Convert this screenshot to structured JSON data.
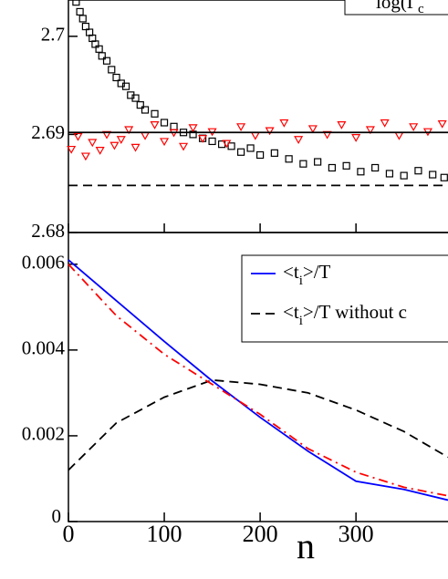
{
  "chart_data": [
    {
      "type": "scatter",
      "xlim": [
        0,
        396
      ],
      "xticks": [
        0,
        100,
        200,
        300
      ],
      "ylim": [
        2.68,
        2.7037
      ],
      "yticks": [
        2.68,
        2.69,
        2.7
      ],
      "legend": [
        {
          "parts": [
            "log(Γ",
            "c"
          ]
        }
      ],
      "series": [
        {
          "marker": "square",
          "color": "#000000",
          "x": [
            8,
            12,
            15,
            18,
            22,
            25,
            28,
            32,
            35,
            40,
            45,
            50,
            55,
            60,
            65,
            70,
            75,
            80,
            90,
            100,
            110,
            120,
            130,
            140,
            150,
            160,
            170,
            180,
            190,
            200,
            215,
            230,
            245,
            260,
            275,
            290,
            305,
            320,
            335,
            350,
            365,
            380,
            392
          ],
          "values": [
            2.7035,
            2.7025,
            2.7018,
            2.701,
            2.7004,
            2.6998,
            2.6992,
            2.6987,
            2.698,
            2.6975,
            2.6966,
            2.6958,
            2.6952,
            2.6949,
            2.694,
            2.6937,
            2.693,
            2.6925,
            2.6921,
            2.6912,
            2.6908,
            2.6902,
            2.69,
            2.6896,
            2.6893,
            2.689,
            2.6888,
            2.6882,
            2.6886,
            2.6879,
            2.6881,
            2.6875,
            2.687,
            2.6872,
            2.6866,
            2.6868,
            2.6862,
            2.6866,
            2.686,
            2.6858,
            2.6863,
            2.6859,
            2.6856
          ]
        },
        {
          "marker": "triangle",
          "color": "#ff0000",
          "x": [
            3,
            10,
            18,
            25,
            33,
            40,
            48,
            55,
            63,
            70,
            80,
            90,
            100,
            110,
            120,
            130,
            140,
            150,
            165,
            180,
            195,
            210,
            225,
            240,
            255,
            270,
            285,
            300,
            315,
            330,
            345,
            360,
            375,
            390
          ],
          "values": [
            2.6885,
            2.6898,
            2.6878,
            2.6892,
            2.6884,
            2.69,
            2.6889,
            2.6895,
            2.6905,
            2.6887,
            2.6899,
            2.691,
            2.6893,
            2.6902,
            2.6888,
            2.6907,
            2.6896,
            2.6903,
            2.6891,
            2.6908,
            2.6899,
            2.6904,
            2.6912,
            2.6895,
            2.6906,
            2.69,
            2.691,
            2.6897,
            2.6905,
            2.6912,
            2.6899,
            2.6908,
            2.6903,
            2.6911
          ]
        },
        {
          "line": "solid",
          "color": "#000000",
          "x": [
            0,
            396
          ],
          "values": [
            2.6902,
            2.6902
          ]
        },
        {
          "line": "dashed",
          "color": "#000000",
          "x": [
            0,
            396
          ],
          "values": [
            2.6848,
            2.6848
          ]
        }
      ]
    },
    {
      "type": "line",
      "xlim": [
        0,
        396
      ],
      "xticks": [
        0,
        100,
        200,
        300
      ],
      "ylim": [
        0,
        0.00674
      ],
      "yticks": [
        0,
        0.002,
        0.004,
        0.006
      ],
      "xlabel": "n",
      "x": [
        0,
        50,
        100,
        150,
        200,
        250,
        300,
        350,
        396
      ],
      "legend": [
        {
          "parts": [
            "<t",
            "i",
            ">/T"
          ]
        },
        {
          "parts": [
            "<t",
            "i",
            ">/T without c"
          ]
        }
      ],
      "series": [
        {
          "line": "solid",
          "color": "#0000ff",
          "values": [
            0.0061,
            0.00515,
            0.0042,
            0.00328,
            0.00243,
            0.00164,
            0.00094,
            0.00075,
            0.0005
          ]
        },
        {
          "line": "dashed",
          "color": "#000000",
          "values": [
            0.0012,
            0.0023,
            0.0029,
            0.0033,
            0.0032,
            0.003,
            0.0026,
            0.0021,
            0.0015
          ]
        },
        {
          "line": "dashdot",
          "color": "#ff0000",
          "values": [
            0.006,
            0.0048,
            0.0039,
            0.0032,
            0.0025,
            0.0017,
            0.00115,
            0.0008,
            0.0006
          ]
        }
      ]
    }
  ]
}
